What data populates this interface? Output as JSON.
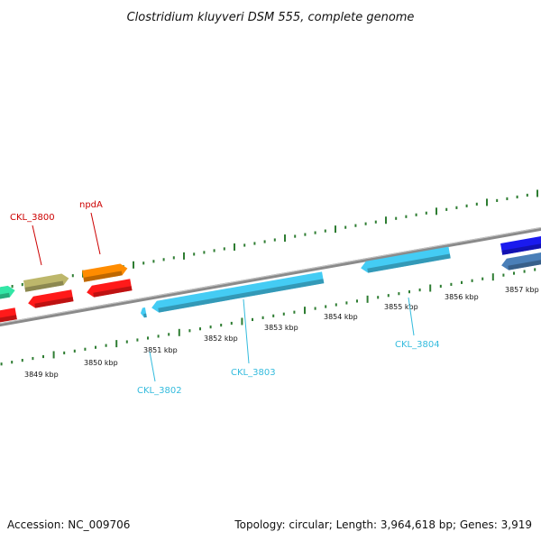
{
  "title": "Clostridium kluyveri DSM 555, complete genome",
  "footer": {
    "accession": "Accession: NC_009706",
    "summary": "Topology: circular; Length: 3,964,618 bp; Genes: 3,919"
  },
  "colors": {
    "backbone": "#8a8a8a",
    "ticks": "#2e7d32",
    "label_red": "#cc0000",
    "label_cyan": "#33bbdd",
    "gene_cyan": "#44ccf4",
    "gene_red": "#ff1a1a",
    "gene_orange": "#ff8c00",
    "gene_olive": "#bdb76b",
    "gene_green": "#33e6a6",
    "gene_blue": "#1a1aee",
    "gene_steel": "#4a7fb8"
  },
  "tick_labels": [
    "3849 kbp",
    "3850 kbp",
    "3851 kbp",
    "3852 kbp",
    "3853 kbp",
    "3854 kbp",
    "3855 kbp",
    "3856 kbp",
    "3857 kbp"
  ],
  "gene_labels": [
    {
      "text": "CKL_3800",
      "color": "label_red"
    },
    {
      "text": "npdA",
      "color": "label_red"
    },
    {
      "text": "CKL_3802",
      "color": "label_cyan"
    },
    {
      "text": "CKL_3803",
      "color": "label_cyan"
    },
    {
      "text": "CKL_3804",
      "color": "label_cyan"
    }
  ],
  "genes": [
    {
      "strand": "forward",
      "color": "gene_green"
    },
    {
      "strand": "forward",
      "color": "gene_olive"
    },
    {
      "strand": "forward",
      "color": "gene_orange"
    },
    {
      "strand": "forward",
      "color": "gene_blue"
    },
    {
      "strand": "reverse",
      "color": "gene_red"
    },
    {
      "strand": "reverse",
      "color": "gene_red"
    },
    {
      "strand": "reverse",
      "color": "gene_red"
    },
    {
      "strand": "reverse",
      "color": "gene_cyan"
    },
    {
      "strand": "reverse",
      "color": "gene_cyan"
    },
    {
      "strand": "reverse",
      "color": "gene_cyan"
    },
    {
      "strand": "reverse",
      "color": "gene_steel"
    }
  ]
}
